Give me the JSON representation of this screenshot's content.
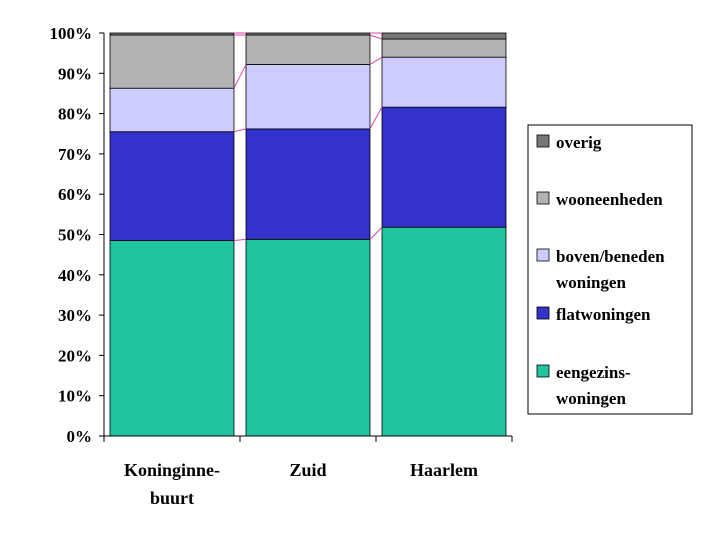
{
  "chart_data": {
    "type": "bar",
    "stacked": true,
    "percent_stacked": true,
    "categories": [
      "Koninginne-\nbuurt",
      "Zuid",
      "Haarlem"
    ],
    "series": [
      {
        "name": "eengezins-\nwoningen",
        "color": "#22c4a0",
        "values": [
          48.5,
          48.8,
          51.8
        ]
      },
      {
        "name": "flatwoningen",
        "color": "#3333cc",
        "values": [
          27.0,
          27.4,
          29.8
        ]
      },
      {
        "name": "boven/beneden\nwoningen",
        "color": "#ccccff",
        "values": [
          10.8,
          16.0,
          12.4
        ]
      },
      {
        "name": "wooneenheden",
        "color": "#b2b2b2",
        "values": [
          13.2,
          7.3,
          4.5
        ]
      },
      {
        "name": "overig",
        "color": "#777777",
        "values": [
          0.5,
          0.5,
          1.5
        ]
      }
    ],
    "yticks": [
      "0%",
      "10%",
      "20%",
      "30%",
      "40%",
      "50%",
      "60%",
      "70%",
      "80%",
      "90%",
      "100%"
    ],
    "ylim": [
      0,
      100
    ],
    "series_lines_color": "#dd44aa",
    "legend_position": "right",
    "grid": false
  }
}
